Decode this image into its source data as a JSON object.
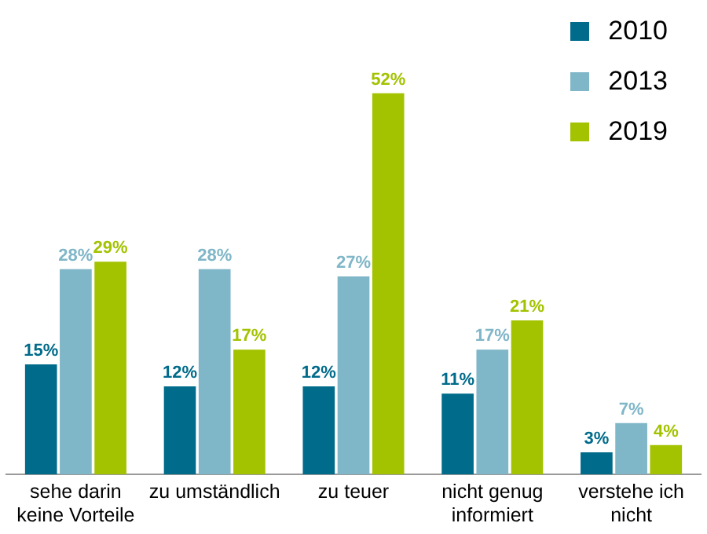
{
  "chart_data": {
    "type": "bar",
    "categories": [
      "sehe darin keine Vorteile",
      "zu umständlich",
      "zu teuer",
      "nicht genug informiert",
      "verstehe ich nicht"
    ],
    "series": [
      {
        "name": "2010",
        "color": "#006b8a",
        "values": [
          15,
          12,
          12,
          11,
          3
        ],
        "value_labels": [
          "15%",
          "12%",
          "12%",
          "11%",
          "3%"
        ]
      },
      {
        "name": "2013",
        "color": "#7fb6c8",
        "values": [
          28,
          28,
          27,
          17,
          7
        ],
        "value_labels": [
          "28%",
          "28%",
          "27%",
          "17%",
          "7%"
        ]
      },
      {
        "name": "2019",
        "color": "#a3c300",
        "values": [
          29,
          17,
          52,
          21,
          4
        ],
        "value_labels": [
          "29%",
          "17%",
          "52%",
          "21%",
          "4%"
        ]
      }
    ],
    "legend": "top right",
    "grid": false
  }
}
